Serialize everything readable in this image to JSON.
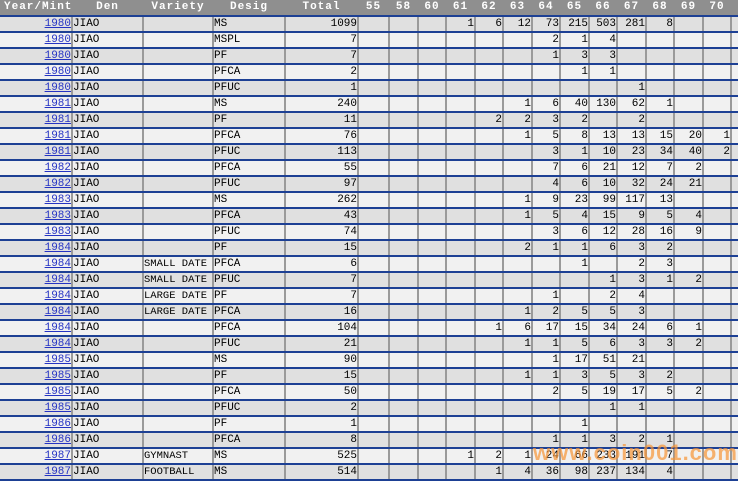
{
  "watermark": "www.coin001.com",
  "colors": {
    "header_bg": "#8f8f8f",
    "header_text": "#ffffff",
    "row_dark": "#e0e0e0",
    "row_light": "#f1f1f1",
    "row_divider": "#1d4094",
    "column_divider": "#9a9a9a",
    "year_link": "#2533c4",
    "watermark_color": "#f79536"
  },
  "table": {
    "columns": [
      "Year/Mint",
      "Den",
      "Variety",
      "Desig",
      "Total",
      "55",
      "58",
      "60",
      "61",
      "62",
      "63",
      "64",
      "65",
      "66",
      "67",
      "68",
      "69",
      "70"
    ],
    "rows": [
      [
        "1980",
        "JIAO",
        "",
        "MS",
        "1099",
        "",
        "",
        "",
        "1",
        "6",
        "12",
        "73",
        "215",
        "503",
        "281",
        "8",
        "",
        ""
      ],
      [
        "1980",
        "JIAO",
        "",
        "MSPL",
        "7",
        "",
        "",
        "",
        "",
        "",
        "",
        "2",
        "1",
        "4",
        "",
        "",
        "",
        ""
      ],
      [
        "1980",
        "JIAO",
        "",
        "PF",
        "7",
        "",
        "",
        "",
        "",
        "",
        "",
        "1",
        "3",
        "3",
        "",
        "",
        "",
        ""
      ],
      [
        "1980",
        "JIAO",
        "",
        "PFCA",
        "2",
        "",
        "",
        "",
        "",
        "",
        "",
        "",
        "1",
        "1",
        "",
        "",
        "",
        ""
      ],
      [
        "1980",
        "JIAO",
        "",
        "PFUC",
        "1",
        "",
        "",
        "",
        "",
        "",
        "",
        "",
        "",
        "",
        "1",
        "",
        "",
        ""
      ],
      [
        "1981",
        "JIAO",
        "",
        "MS",
        "240",
        "",
        "",
        "",
        "",
        "",
        "1",
        "6",
        "40",
        "130",
        "62",
        "1",
        "",
        ""
      ],
      [
        "1981",
        "JIAO",
        "",
        "PF",
        "11",
        "",
        "",
        "",
        "",
        "2",
        "2",
        "3",
        "2",
        "",
        "2",
        "",
        "",
        ""
      ],
      [
        "1981",
        "JIAO",
        "",
        "PFCA",
        "76",
        "",
        "",
        "",
        "",
        "",
        "1",
        "5",
        "8",
        "13",
        "13",
        "15",
        "20",
        "1"
      ],
      [
        "1981",
        "JIAO",
        "",
        "PFUC",
        "113",
        "",
        "",
        "",
        "",
        "",
        "",
        "3",
        "1",
        "10",
        "23",
        "34",
        "40",
        "2"
      ],
      [
        "1982",
        "JIAO",
        "",
        "PFCA",
        "55",
        "",
        "",
        "",
        "",
        "",
        "",
        "7",
        "6",
        "21",
        "12",
        "7",
        "2",
        ""
      ],
      [
        "1982",
        "JIAO",
        "",
        "PFUC",
        "97",
        "",
        "",
        "",
        "",
        "",
        "",
        "4",
        "6",
        "10",
        "32",
        "24",
        "21",
        ""
      ],
      [
        "1983",
        "JIAO",
        "",
        "MS",
        "262",
        "",
        "",
        "",
        "",
        "",
        "1",
        "9",
        "23",
        "99",
        "117",
        "13",
        "",
        ""
      ],
      [
        "1983",
        "JIAO",
        "",
        "PFCA",
        "43",
        "",
        "",
        "",
        "",
        "",
        "1",
        "5",
        "4",
        "15",
        "9",
        "5",
        "4",
        ""
      ],
      [
        "1983",
        "JIAO",
        "",
        "PFUC",
        "74",
        "",
        "",
        "",
        "",
        "",
        "",
        "3",
        "6",
        "12",
        "28",
        "16",
        "9",
        ""
      ],
      [
        "1984",
        "JIAO",
        "",
        "PF",
        "15",
        "",
        "",
        "",
        "",
        "",
        "2",
        "1",
        "1",
        "6",
        "3",
        "2",
        "",
        ""
      ],
      [
        "1984",
        "JIAO",
        "SMALL DATE",
        "PFCA",
        "6",
        "",
        "",
        "",
        "",
        "",
        "",
        "",
        "1",
        "",
        "2",
        "3",
        "",
        ""
      ],
      [
        "1984",
        "JIAO",
        "SMALL DATE",
        "PFUC",
        "7",
        "",
        "",
        "",
        "",
        "",
        "",
        "",
        "",
        "1",
        "3",
        "1",
        "2",
        ""
      ],
      [
        "1984",
        "JIAO",
        "LARGE DATE",
        "PF",
        "7",
        "",
        "",
        "",
        "",
        "",
        "",
        "1",
        "",
        "2",
        "4",
        "",
        "",
        ""
      ],
      [
        "1984",
        "JIAO",
        "LARGE DATE",
        "PFCA",
        "16",
        "",
        "",
        "",
        "",
        "",
        "1",
        "2",
        "5",
        "5",
        "3",
        "",
        "",
        ""
      ],
      [
        "1984",
        "JIAO",
        "",
        "PFCA",
        "104",
        "",
        "",
        "",
        "",
        "1",
        "6",
        "17",
        "15",
        "34",
        "24",
        "6",
        "1",
        ""
      ],
      [
        "1984",
        "JIAO",
        "",
        "PFUC",
        "21",
        "",
        "",
        "",
        "",
        "",
        "1",
        "1",
        "5",
        "6",
        "3",
        "3",
        "2",
        ""
      ],
      [
        "1985",
        "JIAO",
        "",
        "MS",
        "90",
        "",
        "",
        "",
        "",
        "",
        "",
        "1",
        "17",
        "51",
        "21",
        "",
        "",
        ""
      ],
      [
        "1985",
        "JIAO",
        "",
        "PF",
        "15",
        "",
        "",
        "",
        "",
        "",
        "1",
        "1",
        "3",
        "5",
        "3",
        "2",
        "",
        ""
      ],
      [
        "1985",
        "JIAO",
        "",
        "PFCA",
        "50",
        "",
        "",
        "",
        "",
        "",
        "",
        "2",
        "5",
        "19",
        "17",
        "5",
        "2",
        ""
      ],
      [
        "1985",
        "JIAO",
        "",
        "PFUC",
        "2",
        "",
        "",
        "",
        "",
        "",
        "",
        "",
        "",
        "1",
        "1",
        "",
        "",
        ""
      ],
      [
        "1986",
        "JIAO",
        "",
        "PF",
        "1",
        "",
        "",
        "",
        "",
        "",
        "",
        "",
        "1",
        "",
        "",
        "",
        "",
        ""
      ],
      [
        "1986",
        "JIAO",
        "",
        "PFCA",
        "8",
        "",
        "",
        "",
        "",
        "",
        "",
        "1",
        "1",
        "3",
        "2",
        "1",
        "",
        ""
      ],
      [
        "1987",
        "JIAO",
        "GYMNAST",
        "MS",
        "525",
        "",
        "",
        "",
        "1",
        "2",
        "1",
        "24",
        "66",
        "233",
        "191",
        "7",
        "",
        ""
      ],
      [
        "1987",
        "JIAO",
        "FOOTBALL",
        "MS",
        "514",
        "",
        "",
        "",
        "",
        "1",
        "4",
        "36",
        "98",
        "237",
        "134",
        "4",
        "",
        ""
      ]
    ]
  }
}
